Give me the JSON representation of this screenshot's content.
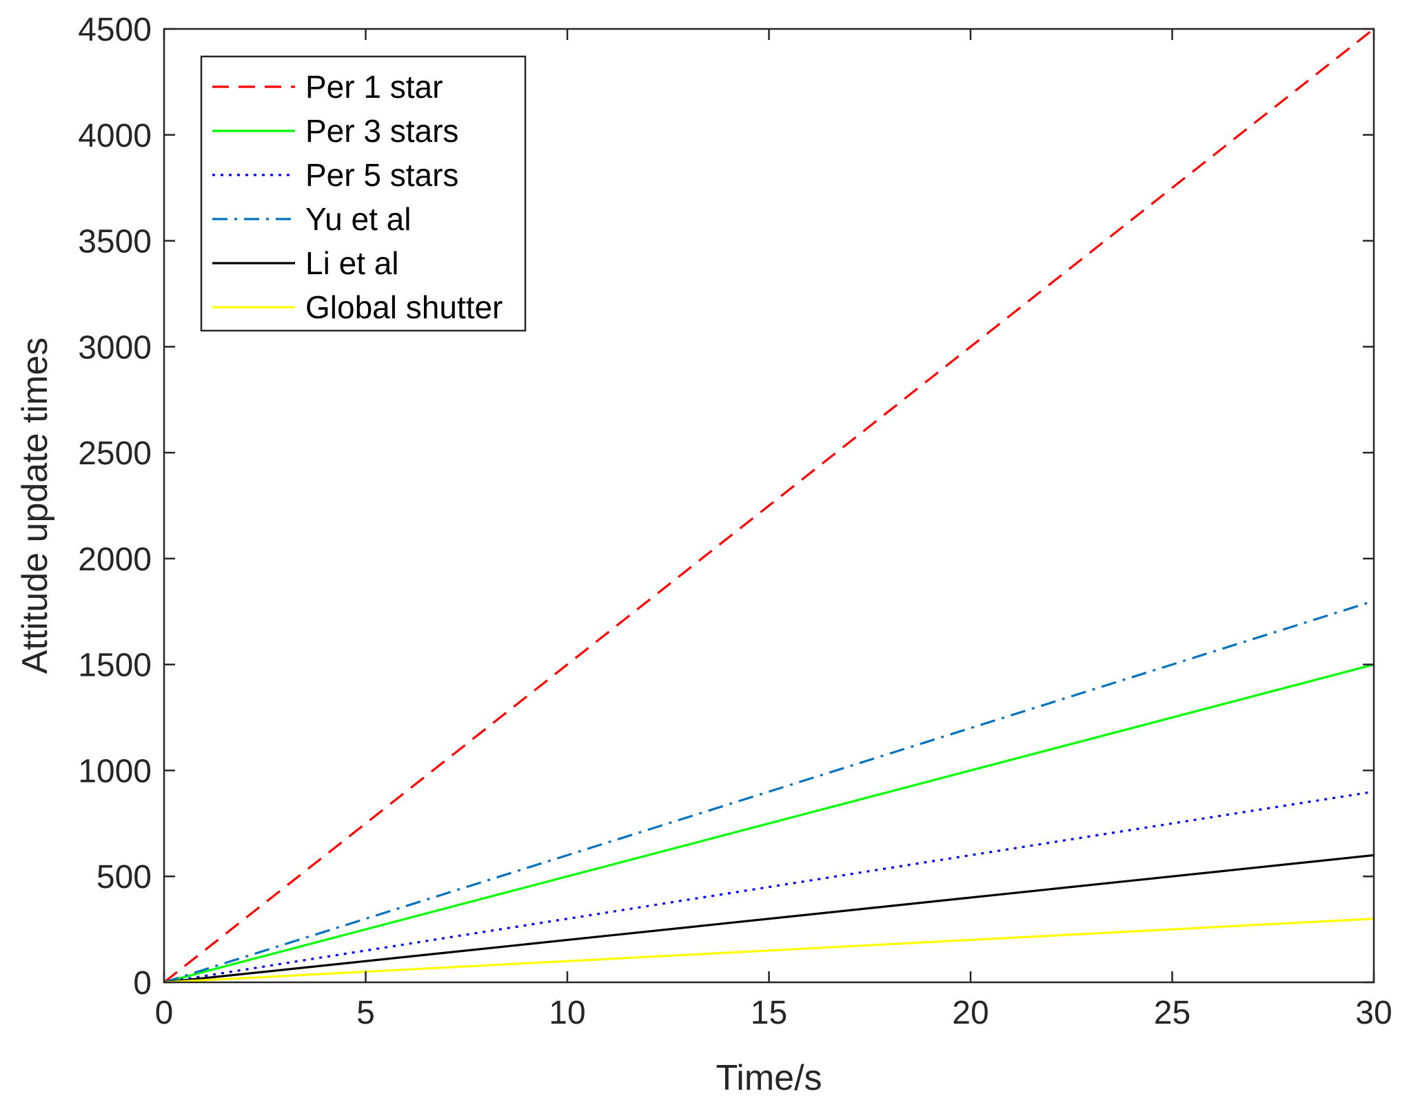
{
  "chart_data": {
    "type": "line",
    "title": "",
    "xlabel": "Time/s",
    "ylabel": "Attitude update times",
    "xlim": [
      0,
      30
    ],
    "ylim": [
      0,
      4500
    ],
    "xticks": [
      0,
      5,
      10,
      15,
      20,
      25,
      30
    ],
    "yticks": [
      0,
      500,
      1000,
      1500,
      2000,
      2500,
      3000,
      3500,
      4000,
      4500
    ],
    "grid": false,
    "legend_position": "top-left",
    "x": [
      0,
      30
    ],
    "series": [
      {
        "name": "Per 1 star",
        "values": [
          0,
          4500
        ],
        "color": "#ff0000",
        "dash": "dashed"
      },
      {
        "name": "Per 3 stars",
        "values": [
          0,
          1500
        ],
        "color": "#00ff00",
        "dash": "solid"
      },
      {
        "name": "Per 5 stars",
        "values": [
          0,
          900
        ],
        "color": "#0000ff",
        "dash": "dotted"
      },
      {
        "name": "Yu et al",
        "values": [
          0,
          1800
        ],
        "color": "#0072bd",
        "dash": "dashdot"
      },
      {
        "name": "Li et al",
        "values": [
          0,
          600
        ],
        "color": "#000000",
        "dash": "solid"
      },
      {
        "name": "Global shutter",
        "values": [
          0,
          300
        ],
        "color": "#ffff00",
        "dash": "solid"
      }
    ]
  }
}
